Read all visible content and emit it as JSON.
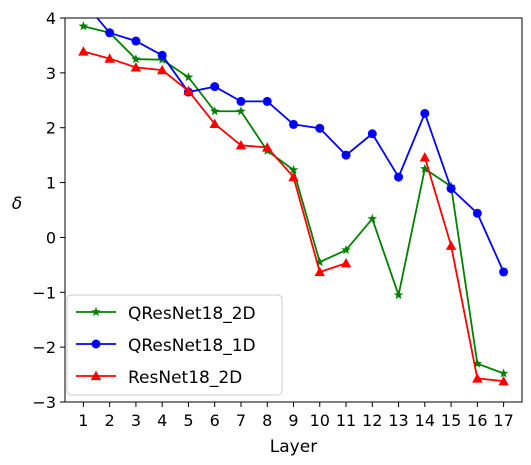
{
  "chart_data": {
    "type": "line",
    "xlabel": "Layer",
    "ylabel": "δ",
    "x": [
      1,
      2,
      3,
      4,
      5,
      6,
      7,
      8,
      9,
      10,
      11,
      12,
      13,
      14,
      15,
      16,
      17
    ],
    "xlim": [
      0.3,
      17.7
    ],
    "ylim": [
      -3,
      4
    ],
    "yticks": [
      -3,
      -2,
      -1,
      0,
      1,
      2,
      3,
      4
    ],
    "grid": false,
    "legend": "lower-left",
    "series": [
      {
        "name": "QResNet18_2D",
        "color": "#008000",
        "marker": "star",
        "x": [
          1,
          2,
          3,
          4,
          5,
          6,
          7,
          8,
          9,
          10,
          11,
          12,
          13,
          14,
          15,
          16,
          17
        ],
        "values": [
          3.85,
          3.73,
          3.25,
          3.24,
          2.92,
          2.3,
          2.3,
          1.58,
          1.23,
          -0.45,
          -0.23,
          0.34,
          -1.05,
          1.25,
          0.93,
          -2.3,
          -2.48
        ]
      },
      {
        "name": "QResNet18_1D",
        "color": "#0000ff",
        "marker": "circle",
        "x": [
          1,
          2,
          3,
          4,
          5,
          6,
          7,
          8,
          9,
          10,
          11,
          12,
          13,
          14,
          15,
          16,
          17
        ],
        "values": [
          4.3,
          3.73,
          3.58,
          3.32,
          2.65,
          2.75,
          2.48,
          2.48,
          2.06,
          1.99,
          1.5,
          1.89,
          1.1,
          2.26,
          0.89,
          0.44,
          -0.63
        ]
      },
      {
        "name": "ResNet18_2D",
        "color": "#ff0000",
        "marker": "triangle",
        "x": [
          1,
          2,
          3,
          4,
          5,
          6,
          7,
          8,
          9,
          10,
          11
        ],
        "values": [
          3.39,
          3.26,
          3.1,
          3.05,
          2.67,
          2.07,
          1.68,
          1.64,
          1.1,
          -0.63,
          -0.47
        ],
        "x2": [
          14,
          15,
          16,
          17
        ],
        "values2": [
          1.46,
          -0.15,
          -2.57,
          -2.62
        ]
      }
    ]
  }
}
